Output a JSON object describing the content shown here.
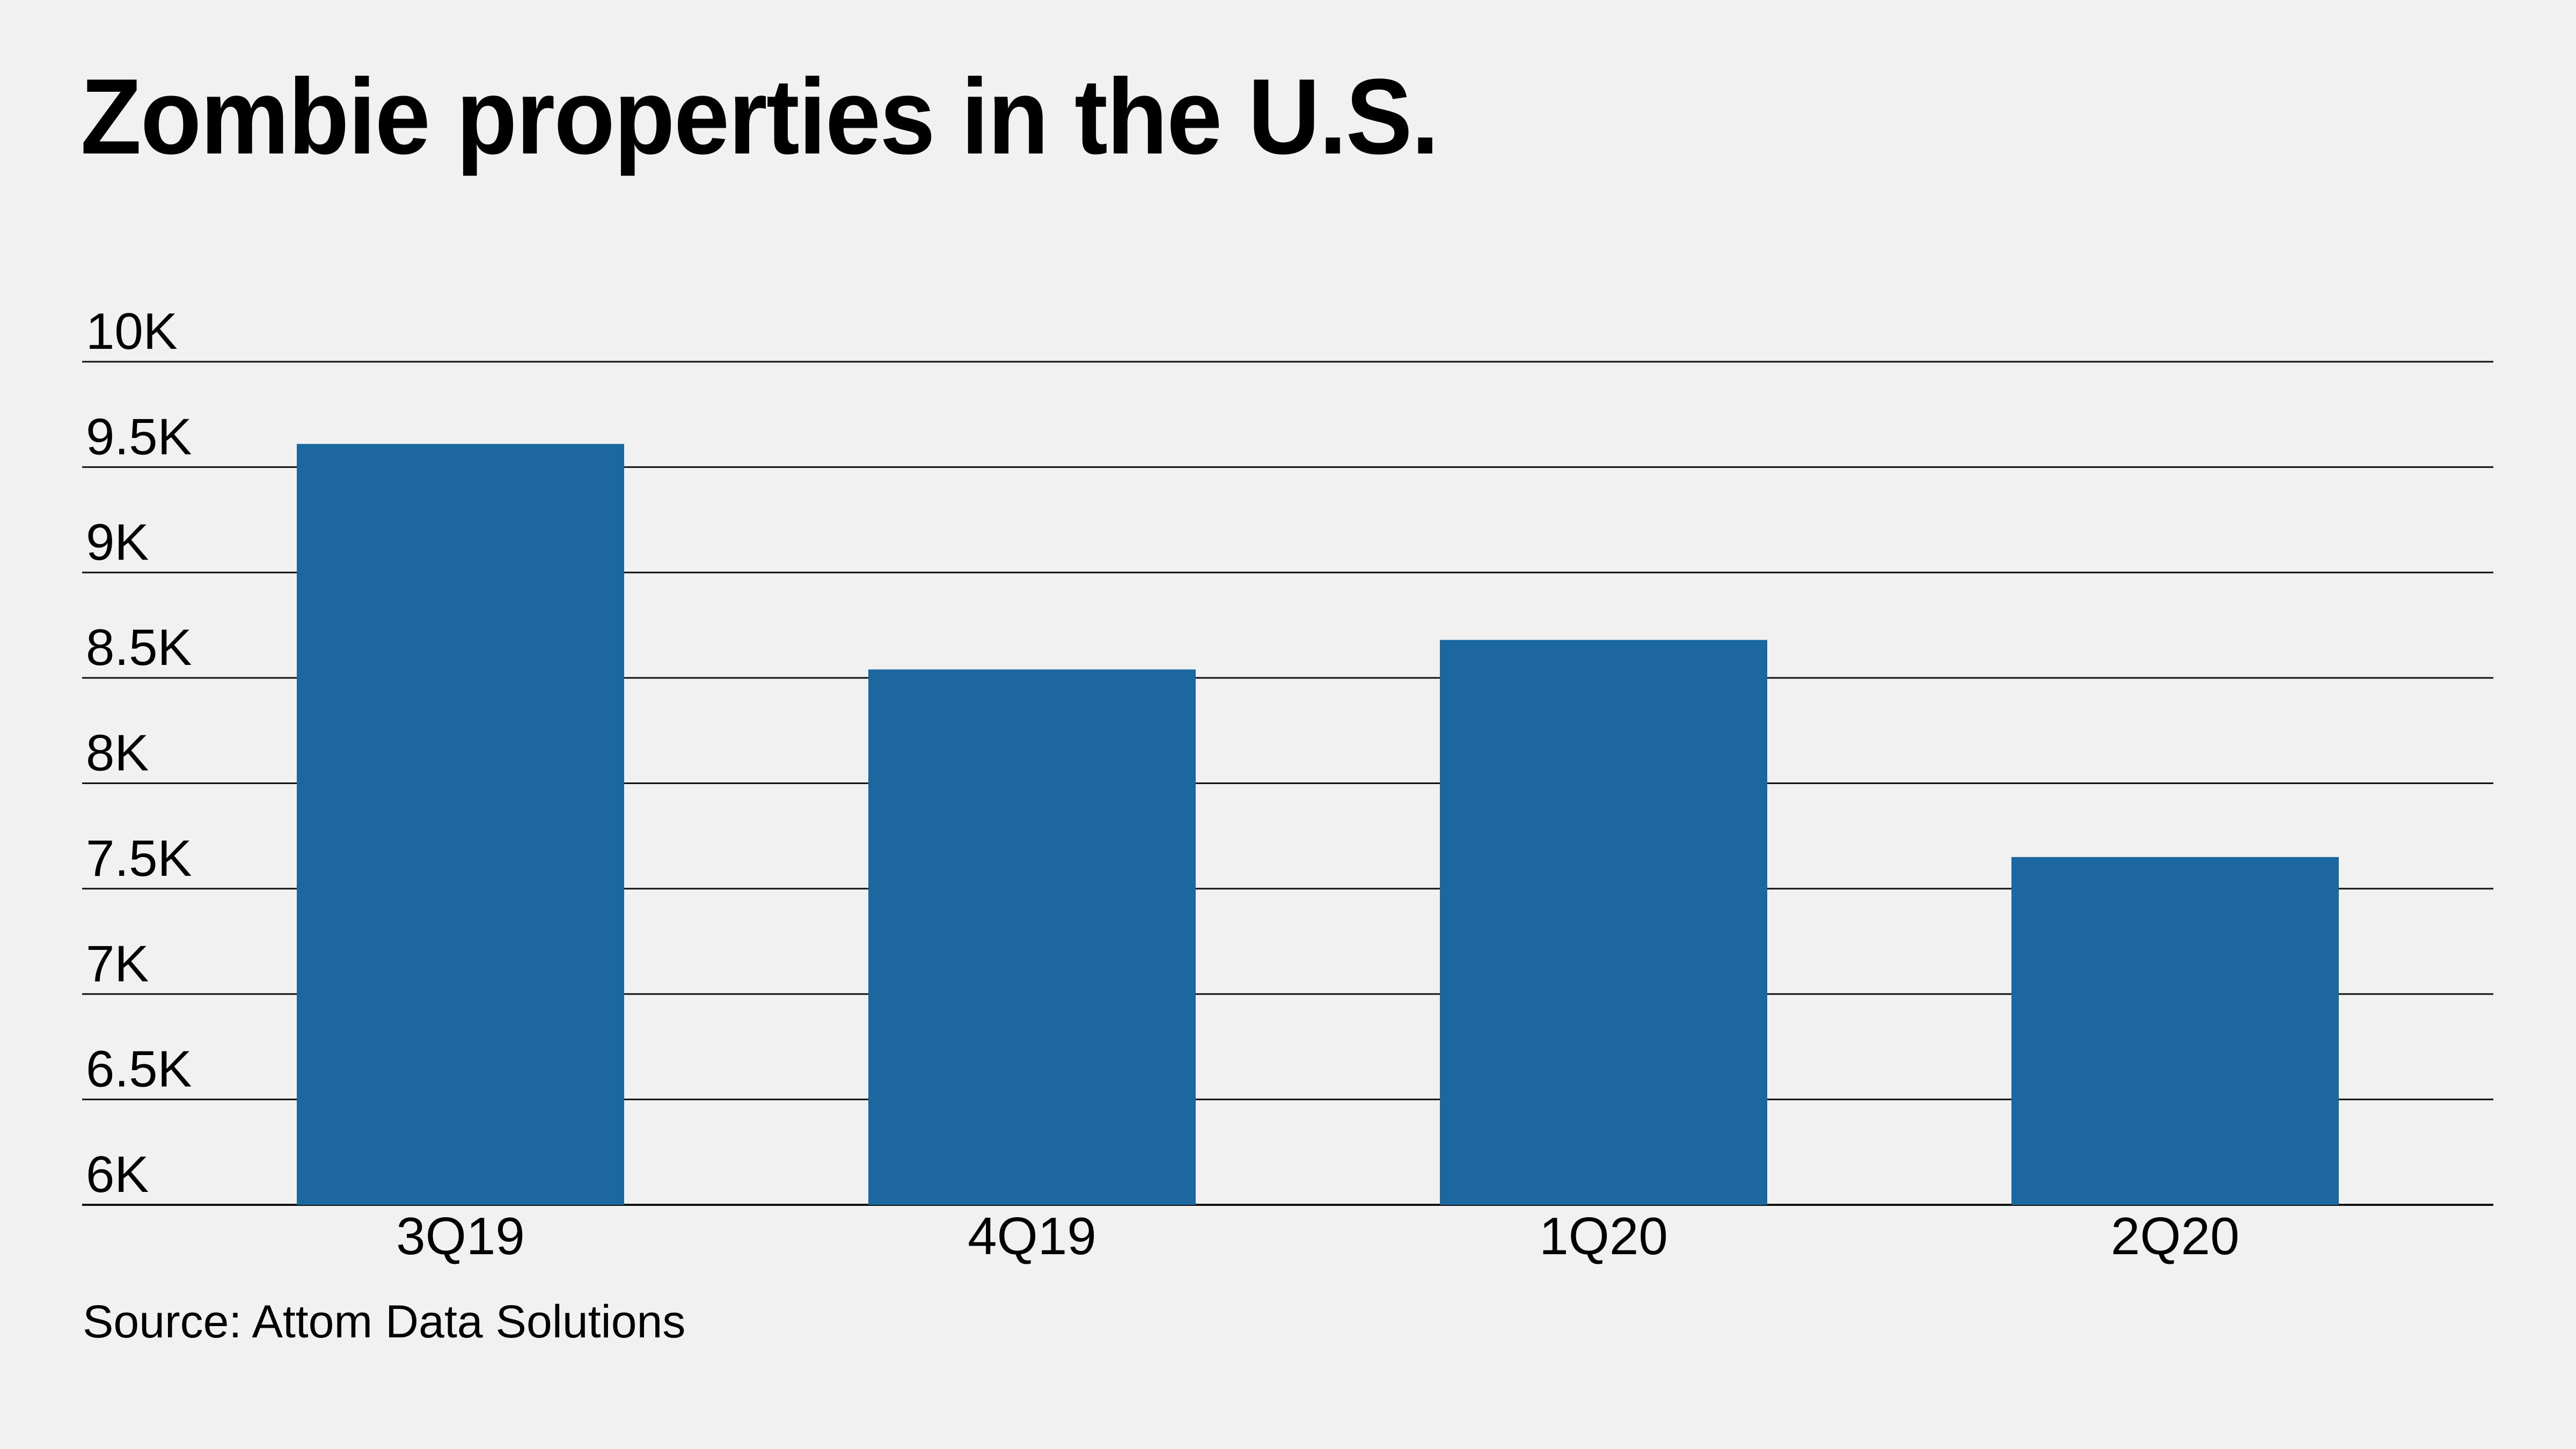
{
  "title": "Zombie properties in the U.S.",
  "source": "Source: Attom Data Solutions",
  "colors": {
    "background": "#f0f1f0",
    "bar": "#1b67a0",
    "gridline": "#111111",
    "text": "#000000"
  },
  "chart_data": {
    "type": "bar",
    "title": "Zombie properties in the U.S.",
    "xlabel": "",
    "ylabel": "",
    "categories": [
      "3Q19",
      "4Q19",
      "1Q20",
      "2Q20"
    ],
    "values": [
      9610,
      8540,
      8680,
      7650
    ],
    "ylim": [
      6000,
      10000
    ],
    "yticks": [
      6000,
      6500,
      7000,
      7500,
      8000,
      8500,
      9000,
      9500,
      10000
    ],
    "ytick_labels": [
      "6K",
      "6.5K",
      "7K",
      "7.5K",
      "8K",
      "8.5K",
      "9K",
      "9.5K",
      "10K"
    ],
    "grid": true,
    "legend": "none",
    "source": "Source: Attom Data Solutions"
  }
}
